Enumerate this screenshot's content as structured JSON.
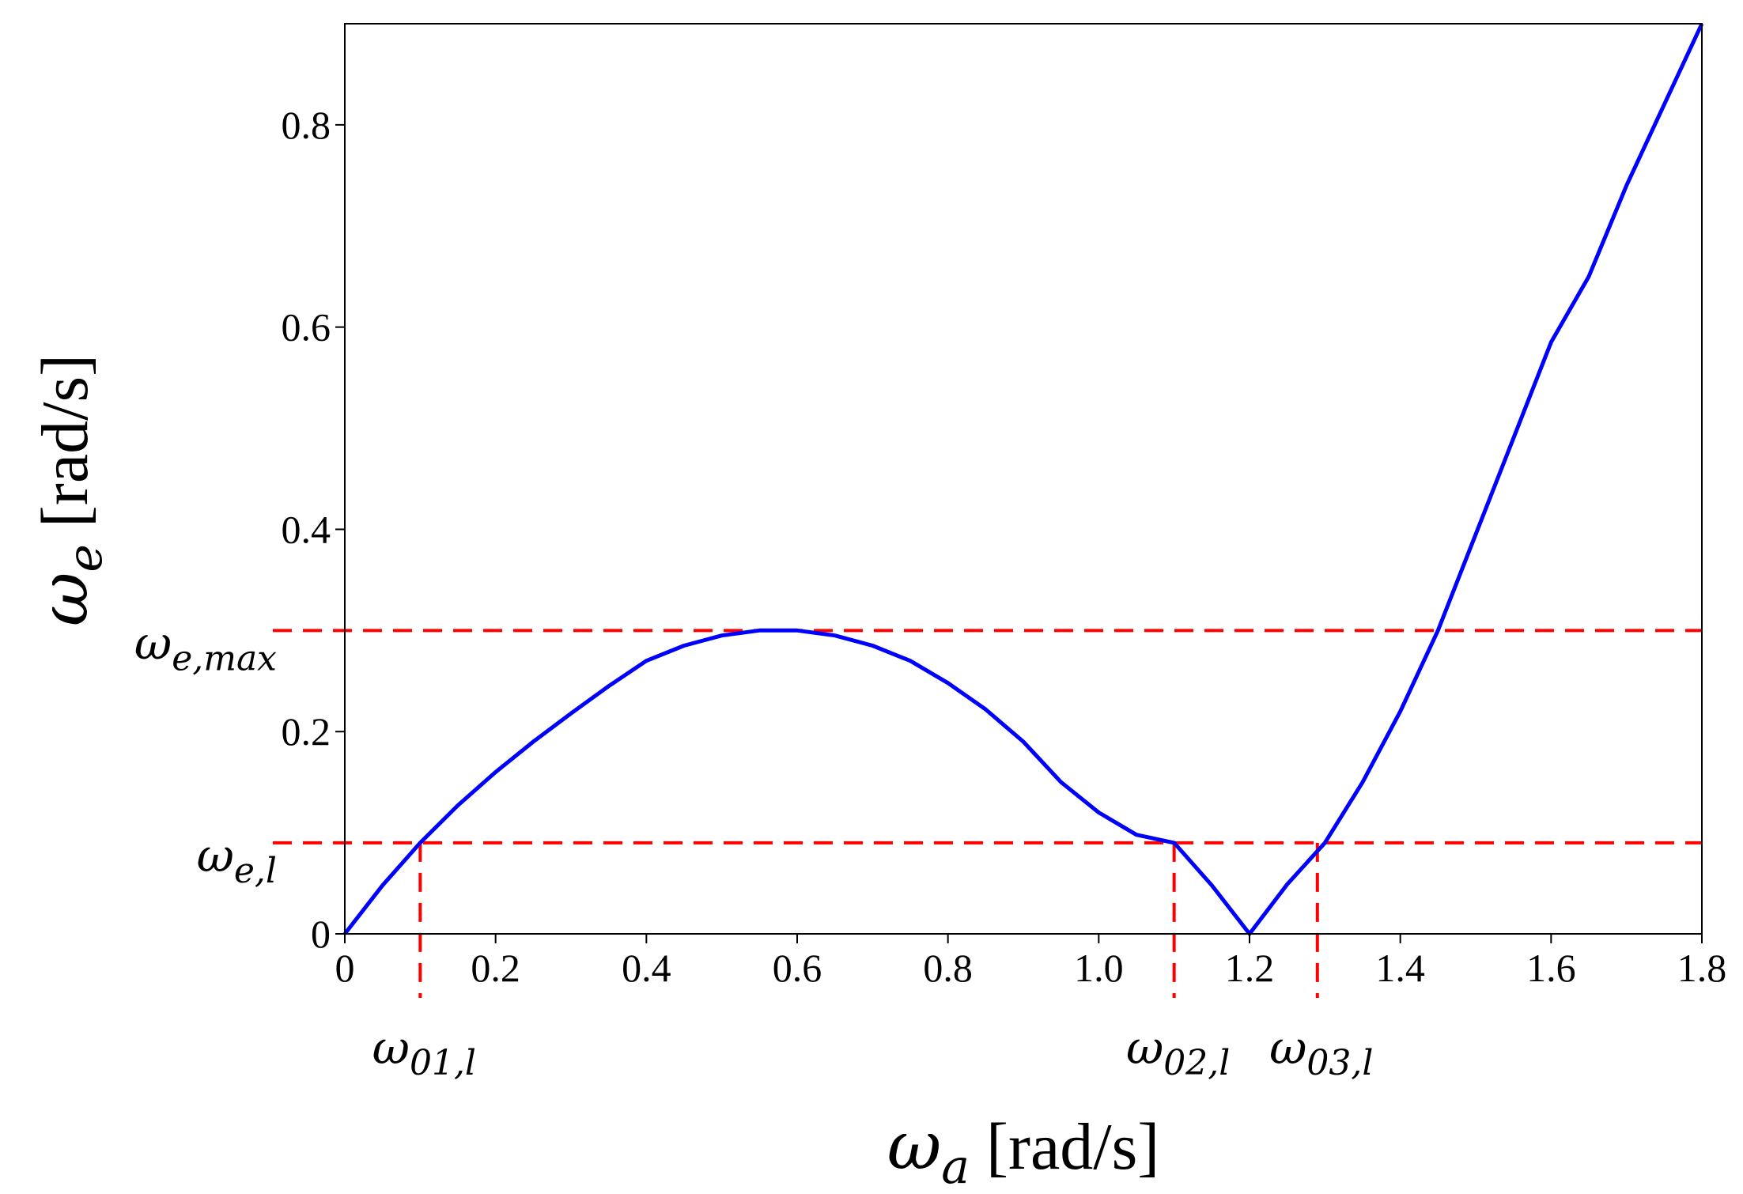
{
  "chart_data": {
    "type": "line",
    "xlabel": {
      "symbol": "ω",
      "sub": "a",
      "unit": " [rad/s]"
    },
    "ylabel": {
      "symbol": "ω",
      "sub": "e",
      "unit": " [rad/s]"
    },
    "xlim": [
      0,
      1.8
    ],
    "ylim": [
      0,
      0.9
    ],
    "x_ticks": [
      0,
      0.2,
      0.4,
      0.6,
      0.8,
      1.0,
      1.2,
      1.4,
      1.6,
      1.8
    ],
    "x_tick_labels": [
      "0",
      "0.2",
      "0.4",
      "0.6",
      "0.8",
      "1.0",
      "1.2",
      "1.4",
      "1.6",
      "1.8"
    ],
    "y_ticks": [
      0,
      0.2,
      0.4,
      0.6,
      0.8
    ],
    "y_tick_labels": [
      "0",
      "0.2",
      "0.4",
      "0.6",
      "0.8"
    ],
    "grid": false,
    "series": [
      {
        "color": "#0000ff",
        "x": [
          0,
          0.05,
          0.1,
          0.15,
          0.2,
          0.25,
          0.3,
          0.35,
          0.4,
          0.45,
          0.5,
          0.55,
          0.6,
          0.65,
          0.7,
          0.75,
          0.8,
          0.85,
          0.9,
          0.95,
          1.0,
          1.05,
          1.1,
          1.15,
          1.2,
          1.25,
          1.3,
          1.35,
          1.4,
          1.45,
          1.5,
          1.55,
          1.6,
          1.65,
          1.7,
          1.75,
          1.8
        ],
        "y": [
          0,
          0.0479,
          0.09,
          0.1271,
          0.16,
          0.19,
          0.218,
          0.245,
          0.27,
          0.285,
          0.295,
          0.3,
          0.3,
          0.295,
          0.285,
          0.27,
          0.248,
          0.222,
          0.19,
          0.15,
          0.12,
          0.098,
          0.09,
          0.048,
          0,
          0.049,
          0.09,
          0.15,
          0.22,
          0.3,
          0.395,
          0.49,
          0.585,
          0.65,
          0.74,
          0.82,
          0.9
        ]
      }
    ],
    "reference_lines": [
      {
        "orientation": "horizontal",
        "value": 0.3,
        "color": "#ff0000",
        "style": "dashed",
        "label": {
          "symbol": "ω",
          "sub": "e,max"
        }
      },
      {
        "orientation": "horizontal",
        "value": 0.09,
        "color": "#ff0000",
        "style": "dashed",
        "label": {
          "symbol": "ω",
          "sub": "e,l"
        }
      },
      {
        "orientation": "vertical",
        "value": 0.1,
        "color": "#ff0000",
        "style": "dashed",
        "label": {
          "symbol": "ω",
          "sub": "01,l"
        }
      },
      {
        "orientation": "vertical",
        "value": 1.1,
        "color": "#ff0000",
        "style": "dashed",
        "label": {
          "symbol": "ω",
          "sub": "02,l"
        }
      },
      {
        "orientation": "vertical",
        "value": 1.29,
        "color": "#ff0000",
        "style": "dashed",
        "label": {
          "symbol": "ω",
          "sub": "03,l"
        }
      }
    ]
  }
}
